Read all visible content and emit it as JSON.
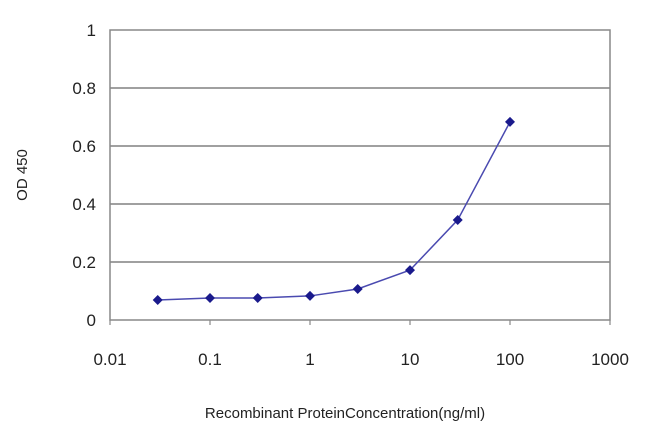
{
  "chart_data": {
    "type": "line",
    "title": "",
    "xlabel": "Recombinant ProteinConcentration(ng/ml)",
    "ylabel": "OD 450",
    "xscale": "log",
    "xlim": [
      0.01,
      1000
    ],
    "ylim": [
      0,
      1
    ],
    "xticks": [
      0.01,
      0.1,
      1,
      10,
      100,
      1000
    ],
    "xtick_labels": [
      "0.01",
      "0.1",
      "1",
      "10",
      "100",
      "1000"
    ],
    "yticks": [
      0,
      0.2,
      0.4,
      0.6,
      0.8,
      1
    ],
    "ytick_labels": [
      "0",
      "0.2",
      "0.4",
      "0.6",
      "0.8",
      "1"
    ],
    "grid": "horizontal",
    "series": [
      {
        "name": "OD 450",
        "color": "#1a1a8c",
        "x": [
          0.03,
          0.1,
          0.3,
          1,
          3,
          10,
          30,
          100
        ],
        "y": [
          0.069,
          0.076,
          0.076,
          0.083,
          0.107,
          0.172,
          0.345,
          0.683
        ]
      }
    ]
  }
}
